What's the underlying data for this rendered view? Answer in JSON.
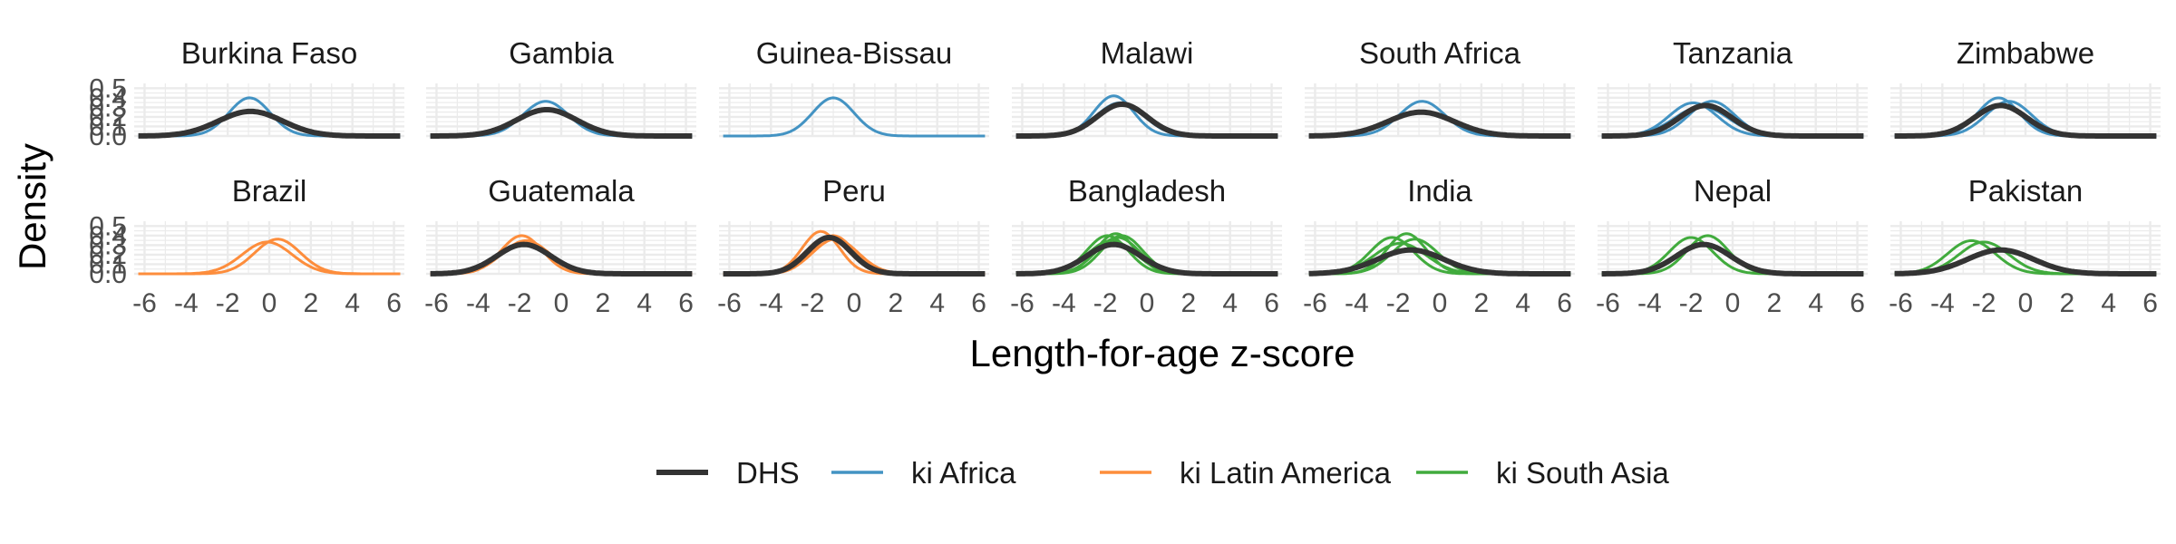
{
  "chart_data": {
    "type": "line",
    "subtype": "faceted-density",
    "title": "",
    "xlabel": "Length-for-age z-score",
    "ylabel": "Density",
    "xlim": [
      -6.5,
      6.5
    ],
    "ylim": [
      0,
      0.55
    ],
    "x_ticks": [
      "-6",
      "-4",
      "-2",
      "0",
      "2",
      "4",
      "6"
    ],
    "y_ticks": [
      "0.0",
      "0.1",
      "0.2",
      "0.3",
      "0.4",
      "0.5"
    ],
    "grid": true,
    "legend": {
      "position": "bottom",
      "entries": [
        {
          "label": "DHS",
          "color": "#333333",
          "width": "thick"
        },
        {
          "label": "ki Africa",
          "color": "#4393c3",
          "width": "thin"
        },
        {
          "label": "ki Latin America",
          "color": "#fd8d3c",
          "width": "thin"
        },
        {
          "label": "ki South Asia",
          "color": "#41ab3d",
          "width": "thin"
        }
      ]
    },
    "panels": [
      {
        "title": "Burkina Faso",
        "row": 0,
        "col": 0,
        "dhs": {
          "mean": -0.9,
          "sd": 1.55
        },
        "ki_group": "ki Africa",
        "ki": [
          {
            "mean": -0.95,
            "sd": 1.0
          }
        ]
      },
      {
        "title": "Gambia",
        "row": 0,
        "col": 1,
        "dhs": {
          "mean": -0.7,
          "sd": 1.45
        },
        "ki_group": "ki Africa",
        "ki": [
          {
            "mean": -0.75,
            "sd": 1.1
          }
        ]
      },
      {
        "title": "Guinea-Bissau",
        "row": 0,
        "col": 2,
        "dhs": null,
        "ki_group": "ki Africa",
        "ki": [
          {
            "mean": -1.0,
            "sd": 1.0
          }
        ]
      },
      {
        "title": "Malawi",
        "row": 0,
        "col": 3,
        "dhs": {
          "mean": -1.2,
          "sd": 1.2
        },
        "ki_group": "ki Africa",
        "ki": [
          {
            "mean": -1.6,
            "sd": 0.95
          },
          {
            "mean": -1.3,
            "sd": 1.15
          }
        ]
      },
      {
        "title": "South Africa",
        "row": 0,
        "col": 4,
        "dhs": {
          "mean": -0.9,
          "sd": 1.6
        },
        "ki_group": "ki Africa",
        "ki": [
          {
            "mean": -0.85,
            "sd": 1.1
          }
        ]
      },
      {
        "title": "Tanzania",
        "row": 0,
        "col": 5,
        "dhs": {
          "mean": -1.3,
          "sd": 1.25
        },
        "ki_group": "ki Africa",
        "ki": [
          {
            "mean": -1.9,
            "sd": 1.15
          },
          {
            "mean": -1.0,
            "sd": 1.1
          },
          {
            "mean": -1.5,
            "sd": 1.3
          }
        ]
      },
      {
        "title": "Zimbabwe",
        "row": 0,
        "col": 6,
        "dhs": {
          "mean": -1.2,
          "sd": 1.25
        },
        "ki_group": "ki Africa",
        "ki": [
          {
            "mean": -1.3,
            "sd": 1.0
          },
          {
            "mean": -0.8,
            "sd": 1.1
          }
        ]
      },
      {
        "title": "Brazil",
        "row": 1,
        "col": 0,
        "dhs": null,
        "ki_group": "ki Latin America",
        "ki": [
          {
            "mean": -0.1,
            "sd": 1.2
          },
          {
            "mean": 0.4,
            "sd": 1.1
          }
        ]
      },
      {
        "title": "Guatemala",
        "row": 1,
        "col": 1,
        "dhs": {
          "mean": -1.8,
          "sd": 1.3
        },
        "ki_group": "ki Latin America",
        "ki": [
          {
            "mean": -1.9,
            "sd": 1.0
          },
          {
            "mean": -1.7,
            "sd": 1.15
          }
        ]
      },
      {
        "title": "Peru",
        "row": 1,
        "col": 2,
        "dhs": {
          "mean": -1.2,
          "sd": 1.05
        },
        "ki_group": "ki Latin America",
        "ki": [
          {
            "mean": -1.6,
            "sd": 0.9
          },
          {
            "mean": -1.0,
            "sd": 1.0
          },
          {
            "mean": -1.3,
            "sd": 1.05
          },
          {
            "mean": -0.9,
            "sd": 1.1
          }
        ]
      },
      {
        "title": "Bangladesh",
        "row": 1,
        "col": 3,
        "dhs": {
          "mean": -1.6,
          "sd": 1.3
        },
        "ki_group": "ki South Asia",
        "ki": [
          {
            "mean": -1.9,
            "sd": 1.0
          },
          {
            "mean": -1.4,
            "sd": 1.05
          },
          {
            "mean": -1.7,
            "sd": 1.15
          },
          {
            "mean": -1.2,
            "sd": 1.0
          },
          {
            "mean": -1.5,
            "sd": 0.95
          }
        ]
      },
      {
        "title": "India",
        "row": 1,
        "col": 4,
        "dhs": {
          "mean": -1.4,
          "sd": 1.6
        },
        "ki_group": "ki South Asia",
        "ki": [
          {
            "mean": -2.3,
            "sd": 1.05
          },
          {
            "mean": -1.6,
            "sd": 0.95
          },
          {
            "mean": -1.2,
            "sd": 1.1
          },
          {
            "mean": -1.9,
            "sd": 1.25
          }
        ]
      },
      {
        "title": "Nepal",
        "row": 1,
        "col": 5,
        "dhs": {
          "mean": -1.4,
          "sd": 1.3
        },
        "ki_group": "ki South Asia",
        "ki": [
          {
            "mean": -2.0,
            "sd": 1.05
          },
          {
            "mean": -1.2,
            "sd": 1.0
          }
        ]
      },
      {
        "title": "Pakistan",
        "row": 1,
        "col": 6,
        "dhs": {
          "mean": -1.2,
          "sd": 1.6
        },
        "ki_group": "ki South Asia",
        "ki": [
          {
            "mean": -2.6,
            "sd": 1.15
          },
          {
            "mean": -2.0,
            "sd": 1.2
          }
        ]
      }
    ]
  }
}
